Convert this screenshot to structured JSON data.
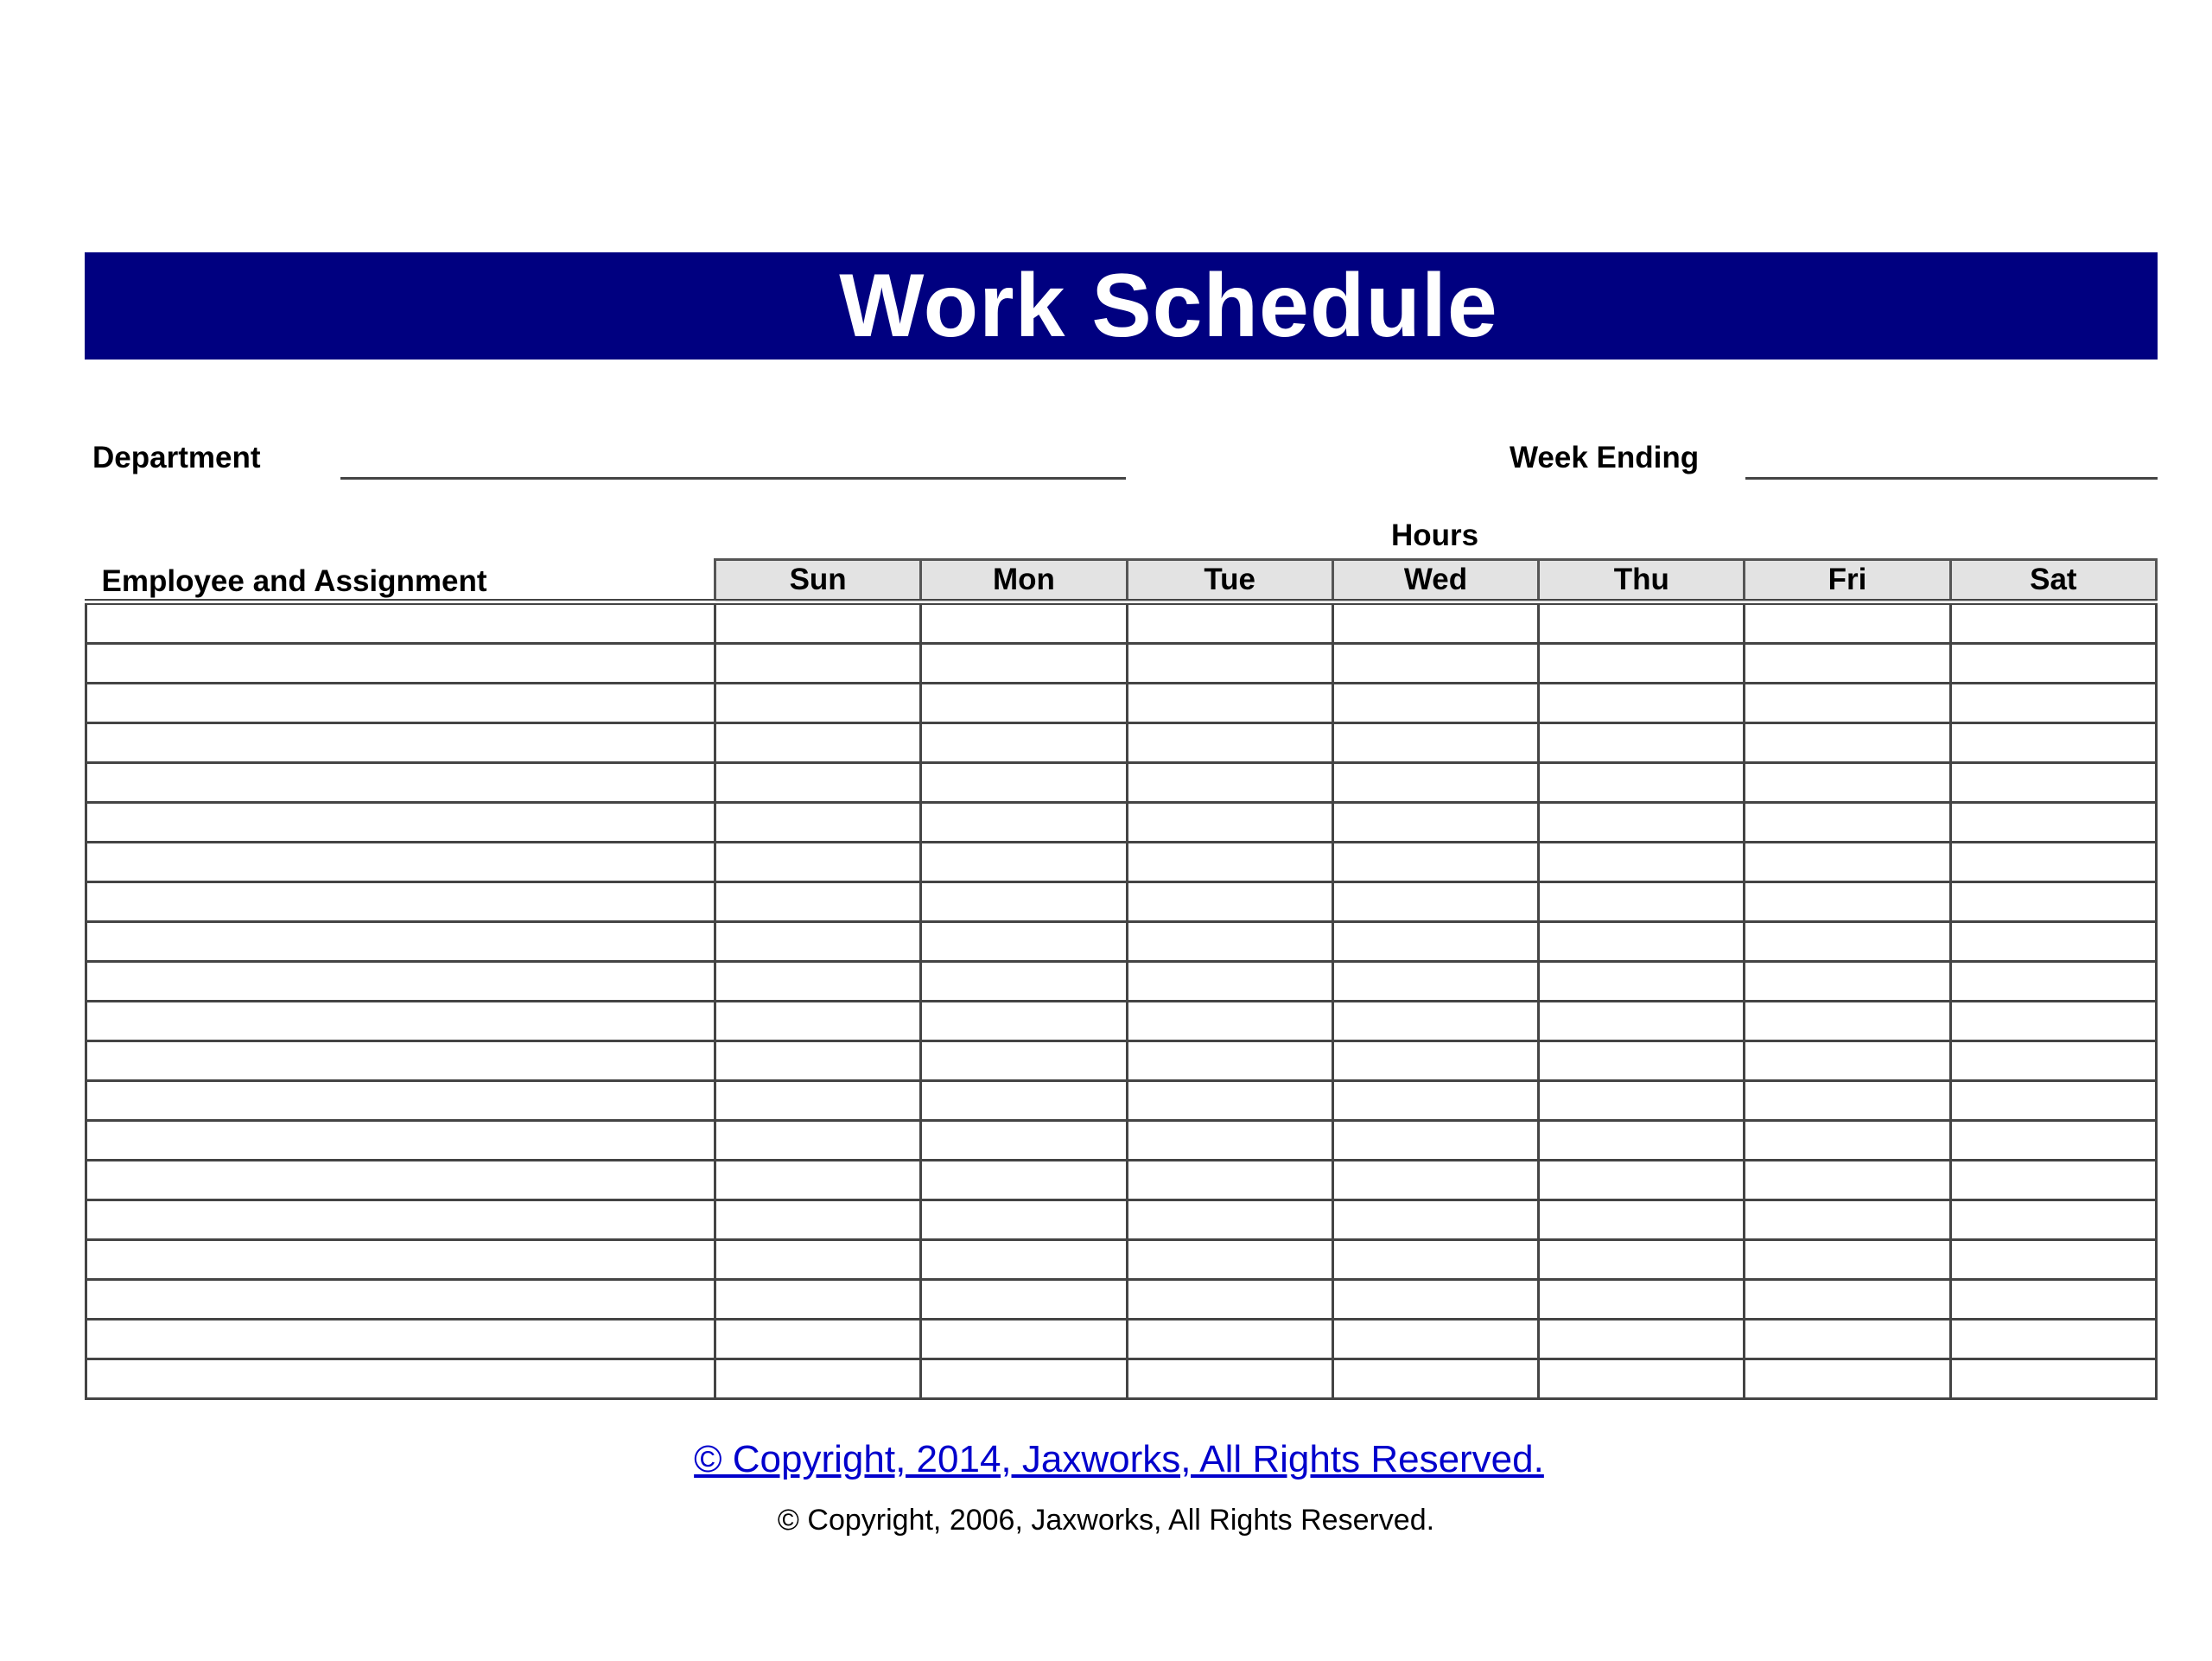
{
  "title": "Work Schedule",
  "colors": {
    "banner": "#000080",
    "link": "#0000cc",
    "header_fill": "#e3e3e3"
  },
  "fields": {
    "department_label": "Department",
    "week_ending_label": "Week Ending",
    "department_value": "",
    "week_ending_value": ""
  },
  "table": {
    "hours_label": "Hours",
    "employee_header": "Employee and Assignment",
    "days": [
      "Sun",
      "Mon",
      "Tue",
      "Wed",
      "Thu",
      "Fri",
      "Sat"
    ],
    "row_count": 20
  },
  "footer": {
    "copyright_link": "© Copyright, 2014, Jaxworks, All Rights Reserved.",
    "copyright_text": "© Copyright, 2006, Jaxworks, All Rights Reserved."
  }
}
